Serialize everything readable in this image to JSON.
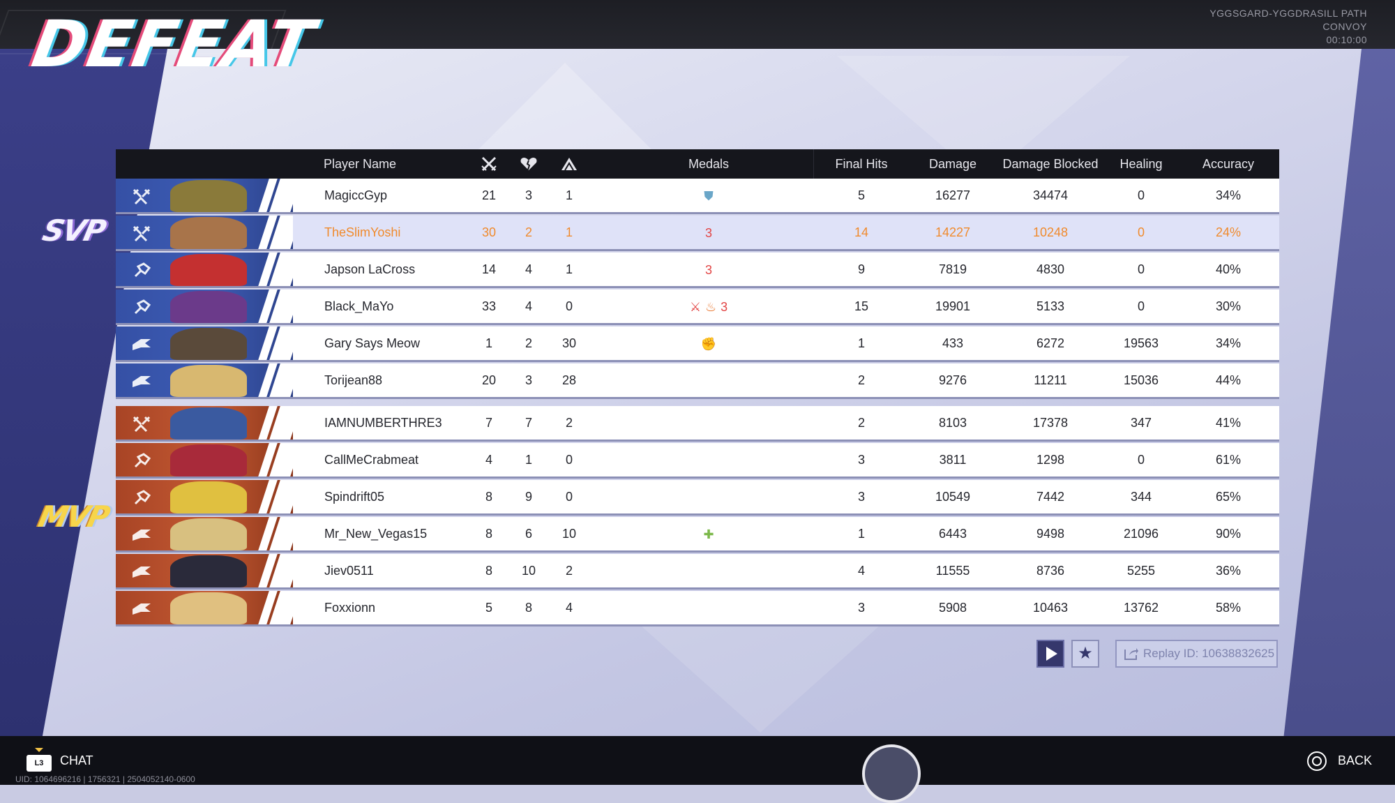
{
  "result_title": "DEFEAT",
  "match_info": {
    "map": "YGGSGARD-YGGDRASILL PATH",
    "mode": "CONVOY",
    "duration": "00:10:00"
  },
  "headers": {
    "player_name": "Player Name",
    "kills_icon": "crossed-swords-icon",
    "deaths_icon": "broken-heart-icon",
    "assists_icon": "assist-icon",
    "medals": "Medals",
    "final_hits": "Final Hits",
    "damage": "Damage",
    "damage_blocked": "Damage Blocked",
    "healing": "Healing",
    "accuracy": "Accuracy"
  },
  "badges": {
    "svp": "SVP",
    "mvp": "MVP"
  },
  "team_blue": [
    {
      "name": "MagiccGyp",
      "k": "21",
      "d": "3",
      "a": "1",
      "medals": [
        "shield"
      ],
      "final_hits": "5",
      "damage": "16277",
      "blocked": "34474",
      "healing": "0",
      "accuracy": "34%",
      "role": "vanguard",
      "highlight": false
    },
    {
      "name": "TheSlimYoshi",
      "k": "30",
      "d": "2",
      "a": "1",
      "medals": [
        "streak3"
      ],
      "final_hits": "14",
      "damage": "14227",
      "blocked": "10248",
      "healing": "0",
      "accuracy": "24%",
      "role": "vanguard",
      "highlight": true
    },
    {
      "name": "Japson LaCross",
      "k": "14",
      "d": "4",
      "a": "1",
      "medals": [
        "streak3"
      ],
      "final_hits": "9",
      "damage": "7819",
      "blocked": "4830",
      "healing": "0",
      "accuracy": "40%",
      "role": "duelist",
      "highlight": false
    },
    {
      "name": "Black_MaYo",
      "k": "33",
      "d": "4",
      "a": "0",
      "medals": [
        "swords",
        "fire",
        "streak3"
      ],
      "final_hits": "15",
      "damage": "19901",
      "blocked": "5133",
      "healing": "0",
      "accuracy": "30%",
      "role": "duelist",
      "highlight": false
    },
    {
      "name": "Gary Says Meow",
      "k": "1",
      "d": "2",
      "a": "30",
      "medals": [
        "fist"
      ],
      "final_hits": "1",
      "damage": "433",
      "blocked": "6272",
      "healing": "19563",
      "accuracy": "34%",
      "role": "strategist",
      "highlight": false
    },
    {
      "name": "Torijean88",
      "k": "20",
      "d": "3",
      "a": "28",
      "medals": [],
      "final_hits": "2",
      "damage": "9276",
      "blocked": "11211",
      "healing": "15036",
      "accuracy": "44%",
      "role": "strategist",
      "highlight": false
    }
  ],
  "team_red": [
    {
      "name": "IAMNUMBERTHRE3",
      "k": "7",
      "d": "7",
      "a": "2",
      "medals": [],
      "final_hits": "2",
      "damage": "8103",
      "blocked": "17378",
      "healing": "347",
      "accuracy": "41%",
      "role": "vanguard"
    },
    {
      "name": "CallMeCrabmeat",
      "k": "4",
      "d": "1",
      "a": "0",
      "medals": [],
      "final_hits": "3",
      "damage": "3811",
      "blocked": "1298",
      "healing": "0",
      "accuracy": "61%",
      "role": "duelist"
    },
    {
      "name": "Spindrift05",
      "k": "8",
      "d": "9",
      "a": "0",
      "medals": [],
      "final_hits": "3",
      "damage": "10549",
      "blocked": "7442",
      "healing": "344",
      "accuracy": "65%",
      "role": "duelist"
    },
    {
      "name": "Mr_New_Vegas15",
      "k": "8",
      "d": "6",
      "a": "10",
      "medals": [
        "plus"
      ],
      "final_hits": "1",
      "damage": "6443",
      "blocked": "9498",
      "healing": "21096",
      "accuracy": "90%",
      "role": "strategist"
    },
    {
      "name": "Jiev0511",
      "k": "8",
      "d": "10",
      "a": "2",
      "medals": [],
      "final_hits": "4",
      "damage": "11555",
      "blocked": "8736",
      "healing": "5255",
      "accuracy": "36%",
      "role": "strategist"
    },
    {
      "name": "Foxxionn",
      "k": "5",
      "d": "8",
      "a": "4",
      "medals": [],
      "final_hits": "3",
      "damage": "5908",
      "blocked": "10463",
      "healing": "13762",
      "accuracy": "58%",
      "role": "strategist"
    }
  ],
  "replay": {
    "label": "Replay ID: 10638832625"
  },
  "footer": {
    "chat_key": "L3",
    "chat_label": "CHAT",
    "uid_text": "UID: 1064696216 | 1756321 | 2504052140-0600",
    "back_label": "BACK"
  },
  "colors": {
    "team_blue": "#3550a5",
    "team_red": "#c45a33",
    "highlight_text": "#f08a2c",
    "header_bg": "#15161c"
  }
}
